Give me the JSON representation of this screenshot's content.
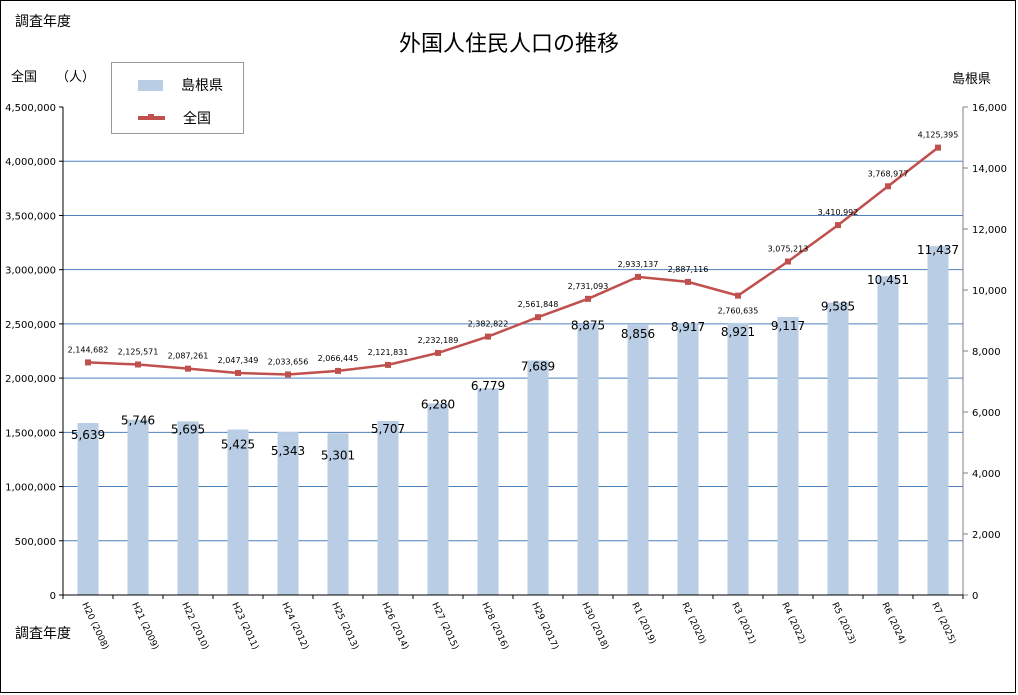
{
  "header": {
    "corner_label": "調査年度",
    "title": "外国人住民人口の推移",
    "left_axis_title": "全国",
    "left_axis_unit": "（人）",
    "right_axis_title": "島根県",
    "x_axis_title": "調査年度"
  },
  "legend": {
    "items": [
      {
        "label": "島根県",
        "type": "bar",
        "color": "#b9cde5"
      },
      {
        "label": "全国",
        "type": "line",
        "color": "#c0504d"
      }
    ]
  },
  "colors": {
    "bar": "#b9cde5",
    "line": "#c0504d",
    "grid": "#4f81bd",
    "axis": "#000000",
    "right_axis": "#808080"
  },
  "chart_data": {
    "type": "bar+line",
    "title": "外国人住民人口の推移",
    "xlabel": "調査年度",
    "ylabel_left": "全国（人）",
    "ylabel_right": "島根県",
    "categories": [
      "H20 (2008)",
      "H21 (2009)",
      "H22 (2010)",
      "H23 (2011)",
      "H24 (2012)",
      "H25 (2013)",
      "H26 (2014)",
      "H27 (2015)",
      "H28 (2016)",
      "H29 (2017)",
      "H30 (2018)",
      "R1 (2019)",
      "R2 (2020)",
      "R3 (2021)",
      "R4 (2022)",
      "R5 (2023)",
      "R6 (2024)",
      "R7 (2025)"
    ],
    "series": [
      {
        "name": "島根県",
        "type": "bar",
        "axis": "right",
        "values": [
          5639,
          5746,
          5695,
          5425,
          5343,
          5301,
          5707,
          6280,
          6779,
          7689,
          8875,
          8856,
          8917,
          8921,
          9117,
          9585,
          10451,
          11437
        ],
        "labels": [
          "5,639",
          "5,746",
          "5,695",
          "5,425",
          "5,343",
          "5,301",
          "5,707",
          "6,280",
          "6,779",
          "7,689",
          "8,875",
          "8,856",
          "8,917",
          "8,921",
          "9,117",
          "9,585",
          "10,451",
          "11,437"
        ]
      },
      {
        "name": "全国",
        "type": "line",
        "axis": "left",
        "values": [
          2144682,
          2125571,
          2087261,
          2047349,
          2033656,
          2066445,
          2121831,
          2232189,
          2382822,
          2561848,
          2731093,
          2933137,
          2887116,
          2760635,
          3075213,
          3410992,
          3768977,
          4125395
        ],
        "labels": [
          "2,144,682",
          "2,125,571",
          "2,087,261",
          "2,047,349",
          "2,033,656",
          "2,066,445",
          "2,121,831",
          "2,232,189",
          "2,382,822",
          "2,561,848",
          "2,731,093",
          "2,933,137",
          "2,887,116",
          "2,760,635",
          "3,075,213",
          "3,410,992",
          "3,768,977",
          "4,125,395"
        ]
      }
    ],
    "ylim_left": [
      0,
      4500000
    ],
    "ylim_right": [
      0,
      16000
    ],
    "left_ticks": [
      "0",
      "500,000",
      "1,000,000",
      "1,500,000",
      "2,000,000",
      "2,500,000",
      "3,000,000",
      "3,500,000",
      "4,000,000",
      "4,500,000"
    ],
    "right_ticks": [
      "0",
      "2,000",
      "4,000",
      "6,000",
      "8,000",
      "10,000",
      "12,000",
      "14,000",
      "16,000"
    ],
    "grid": true,
    "legend_position": "top-left"
  }
}
